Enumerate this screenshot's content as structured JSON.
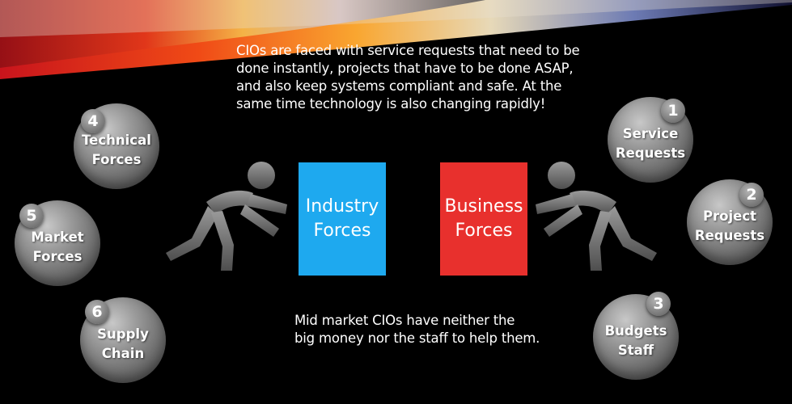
{
  "intro_text": "CIOs are faced with service requests that need to be done instantly, projects that have to be done  ASAP, and also keep systems compliant and safe.  At the same time technology is also changing rapidly!",
  "intro_lines": [
    "CIOs are faced with service requests that need to be",
    "done instantly, projects that have to be done  ASAP,",
    "and also keep systems compliant and safe.  At the",
    "same time technology is also changing rapidly!"
  ],
  "outro_lines": [
    "Mid market CIOs have neither the",
    "big money nor the staff to help them."
  ],
  "boxes": {
    "industry": {
      "line1": "Industry",
      "line2": "Forces",
      "color": "#1ea9ef"
    },
    "business": {
      "line1": "Business",
      "line2": "Forces",
      "color": "#e8302d"
    }
  },
  "balls": {
    "b1": {
      "number": "1",
      "line1": "Service",
      "line2": "Requests"
    },
    "b2": {
      "number": "2",
      "line1": "Project",
      "line2": "Requests"
    },
    "b3": {
      "number": "3",
      "line1": "Budgets",
      "line2": "Staff"
    },
    "b4": {
      "number": "4",
      "line1": "Technical",
      "line2": "Forces"
    },
    "b5": {
      "number": "5",
      "line1": "Market",
      "line2": "Forces"
    },
    "b6": {
      "number": "6",
      "line1": "Supply",
      "line2": "Chain"
    }
  },
  "icons": {
    "left_figure": "pushing-figure-icon",
    "right_figure": "pushing-figure-icon"
  }
}
